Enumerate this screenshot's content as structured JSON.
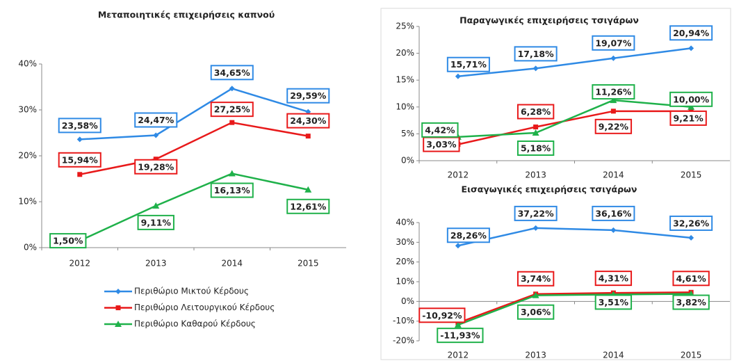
{
  "chart_data": [
    {
      "type": "line",
      "title": "Μεταποιητικές επιχειρήσεις καπνού",
      "categories": [
        "2012",
        "2013",
        "2014",
        "2015"
      ],
      "series": [
        {
          "name": "Περιθώριο Μικτού Κέρδους",
          "color": "#2f8ae5",
          "marker": "diamond",
          "values": [
            23.58,
            24.47,
            34.65,
            29.59
          ],
          "value_labels": [
            "23,58%",
            "24,47%",
            "34,65%",
            "29,59%"
          ]
        },
        {
          "name": "Περιθώριο Λειτουργικού Κέρδους",
          "color": "#e8191a",
          "marker": "square",
          "values": [
            15.94,
            19.28,
            27.25,
            24.3
          ],
          "value_labels": [
            "15,94%",
            "19,28%",
            "27,25%",
            "24,30%"
          ]
        },
        {
          "name": "Περιθώριο Καθαρού Κέρδους",
          "color": "#1fb14a",
          "marker": "triangle",
          "values": [
            1.5,
            9.11,
            16.13,
            12.61
          ],
          "value_labels": [
            "1,50%",
            "9,11%",
            "16,13%",
            "12,61%"
          ]
        }
      ],
      "ylim": [
        0,
        40
      ],
      "yticks": [
        {
          "value": 0,
          "label": "0%"
        },
        {
          "value": 10,
          "label": "10%"
        },
        {
          "value": 20,
          "label": "20%"
        },
        {
          "value": 30,
          "label": "30%"
        },
        {
          "value": 40,
          "label": "40%"
        }
      ],
      "legend": "bottom"
    },
    {
      "type": "line",
      "title": "Παραγωγικές επιχειρήσεις τσιγάρων",
      "categories": [
        "2012",
        "2013",
        "2014",
        "2015"
      ],
      "series": [
        {
          "color": "#2f8ae5",
          "marker": "diamond",
          "values": [
            15.71,
            17.18,
            19.07,
            20.94
          ],
          "value_labels": [
            "15,71%",
            "17,18%",
            "19,07%",
            "20,94%"
          ]
        },
        {
          "color": "#e8191a",
          "marker": "square",
          "values": [
            3.03,
            6.28,
            9.22,
            9.21
          ],
          "value_labels": [
            "3,03%",
            "6,28%",
            "9,22%",
            "9,21%"
          ]
        },
        {
          "color": "#1fb14a",
          "marker": "triangle",
          "values": [
            4.42,
            5.18,
            11.26,
            10.0
          ],
          "value_labels": [
            "4,42%",
            "5,18%",
            "11,26%",
            "10,00%"
          ]
        }
      ],
      "ylim": [
        0,
        25
      ],
      "yticks": [
        {
          "value": 0,
          "label": "0%"
        },
        {
          "value": 5,
          "label": "5%"
        },
        {
          "value": 10,
          "label": "10%"
        },
        {
          "value": 15,
          "label": "15%"
        },
        {
          "value": 20,
          "label": "20%"
        },
        {
          "value": 25,
          "label": "25%"
        }
      ]
    },
    {
      "type": "line",
      "title": "Εισαγωγικές επιχειρήσεις τσιγάρων",
      "categories": [
        "2012",
        "2013",
        "2014",
        "2015"
      ],
      "series": [
        {
          "color": "#2f8ae5",
          "marker": "diamond",
          "values": [
            28.26,
            37.22,
            36.16,
            32.26
          ],
          "value_labels": [
            "28,26%",
            "37,22%",
            "36,16%",
            "32,26%"
          ]
        },
        {
          "color": "#e8191a",
          "marker": "square",
          "values": [
            -10.92,
            3.74,
            4.31,
            4.61
          ],
          "value_labels": [
            "-10,92%",
            "3,74%",
            "4,31%",
            "4,61%"
          ]
        },
        {
          "color": "#1fb14a",
          "marker": "triangle",
          "values": [
            -11.93,
            3.06,
            3.51,
            3.82
          ],
          "value_labels": [
            "-11,93%",
            "3,06%",
            "3,51%",
            "3,82%"
          ]
        }
      ],
      "ylim": [
        -20,
        40
      ],
      "yticks": [
        {
          "value": -20,
          "label": "-20%"
        },
        {
          "value": -10,
          "label": "-10%"
        },
        {
          "value": 0,
          "label": "0%"
        },
        {
          "value": 10,
          "label": "10%"
        },
        {
          "value": 20,
          "label": "20%"
        },
        {
          "value": 30,
          "label": "30%"
        },
        {
          "value": 40,
          "label": "40%"
        }
      ]
    }
  ]
}
